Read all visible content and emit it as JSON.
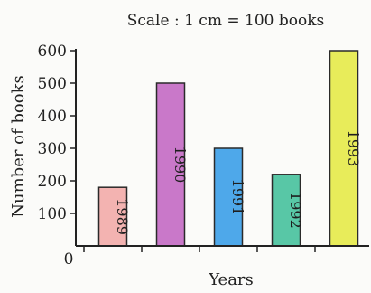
{
  "chart_data": {
    "type": "bar",
    "title": "Scale : 1 cm = 100 books",
    "xlabel": "Years",
    "ylabel": "Number of books",
    "categories": [
      "1989",
      "1990",
      "1991",
      "1992",
      "1993"
    ],
    "values": [
      180,
      500,
      300,
      220,
      600
    ],
    "colors": [
      "#f3b3b1",
      "#c978c9",
      "#4ea8ea",
      "#58c7a6",
      "#e8ec5a"
    ],
    "ylim": [
      0,
      600
    ],
    "yticks": [
      "100",
      "200",
      "300",
      "400",
      "500",
      "600"
    ],
    "origin_label": "0",
    "grid": false,
    "legend": "none"
  }
}
